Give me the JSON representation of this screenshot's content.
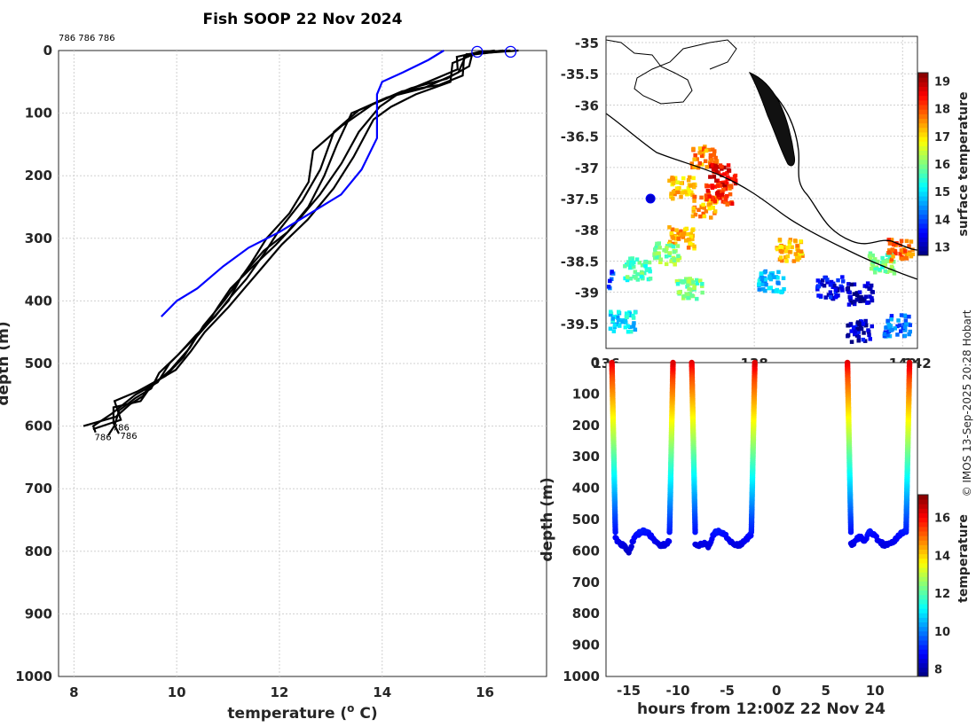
{
  "credit": "© IMOS 13-Sep-2025 20:28 Hobart",
  "chart_data": [
    {
      "type": "line",
      "title": "Fish SOOP 22 Nov 2024",
      "xlabel": "temperature (",
      "xlabel_sup": "o",
      "xlabel_tail": " C)",
      "ylabel": "depth (m)",
      "xlim": [
        7.7,
        17.2
      ],
      "ylim": [
        1000,
        0
      ],
      "xticks": [
        8,
        10,
        12,
        14,
        16
      ],
      "yticks": [
        0,
        100,
        200,
        300,
        400,
        500,
        600,
        700,
        800,
        900,
        1000
      ],
      "top_annotation": "786 786 786",
      "bottom_annotations": [
        {
          "text": "786",
          "x": 8.4,
          "y": 618
        },
        {
          "text": "786",
          "x": 8.9,
          "y": 616
        },
        {
          "text": "786",
          "x": 8.75,
          "y": 603
        }
      ],
      "series": [
        {
          "name": "profiles",
          "color": "#000000",
          "profiles": [
            [
              [
                16.5,
                0
              ],
              [
                15.9,
                2
              ],
              [
                15.5,
                10
              ],
              [
                15.5,
                30
              ],
              [
                14.9,
                50
              ],
              [
                14.3,
                70
              ],
              [
                14.0,
                90
              ],
              [
                13.5,
                130
              ],
              [
                13.2,
                180
              ],
              [
                12.8,
                230
              ],
              [
                12.3,
                280
              ],
              [
                11.9,
                310
              ],
              [
                11.4,
                350
              ],
              [
                11.1,
                380
              ],
              [
                10.8,
                410
              ],
              [
                10.6,
                440
              ],
              [
                10.2,
                470
              ],
              [
                9.9,
                500
              ],
              [
                9.6,
                530
              ],
              [
                9.2,
                550
              ],
              [
                8.9,
                580
              ],
              [
                8.6,
                600
              ],
              [
                8.2,
                610
              ]
            ],
            [
              [
                16.3,
                0
              ],
              [
                15.8,
                5
              ],
              [
                15.7,
                25
              ],
              [
                15.2,
                45
              ],
              [
                14.6,
                60
              ],
              [
                14.0,
                80
              ],
              [
                13.4,
                100
              ],
              [
                13.1,
                150
              ],
              [
                12.9,
                200
              ],
              [
                12.6,
                250
              ],
              [
                12.1,
                290
              ],
              [
                11.7,
                320
              ],
              [
                11.3,
                360
              ],
              [
                11.0,
                400
              ],
              [
                10.7,
                430
              ],
              [
                10.4,
                460
              ],
              [
                10.1,
                490
              ],
              [
                9.8,
                520
              ],
              [
                9.3,
                545
              ],
              [
                9.0,
                560
              ],
              [
                8.7,
                590
              ],
              [
                8.5,
                605
              ]
            ],
            [
              [
                16.4,
                0
              ],
              [
                15.6,
                8
              ],
              [
                15.6,
                40
              ],
              [
                15.1,
                55
              ],
              [
                14.4,
                65
              ],
              [
                13.8,
                85
              ],
              [
                13.2,
                120
              ],
              [
                12.7,
                160
              ],
              [
                12.6,
                210
              ],
              [
                12.2,
                260
              ],
              [
                11.8,
                300
              ],
              [
                11.5,
                340
              ],
              [
                11.2,
                370
              ],
              [
                10.9,
                400
              ],
              [
                10.5,
                440
              ],
              [
                10.2,
                475
              ],
              [
                9.9,
                510
              ],
              [
                9.5,
                540
              ],
              [
                9.3,
                560
              ],
              [
                8.8,
                570
              ],
              [
                8.6,
                595
              ],
              [
                8.9,
                612
              ]
            ],
            [
              [
                16.2,
                0
              ],
              [
                15.9,
                3
              ],
              [
                15.4,
                20
              ],
              [
                15.3,
                50
              ],
              [
                14.7,
                70
              ],
              [
                14.2,
                90
              ],
              [
                13.8,
                110
              ],
              [
                13.4,
                170
              ],
              [
                13.0,
                220
              ],
              [
                12.5,
                270
              ],
              [
                12.0,
                310
              ],
              [
                11.6,
                350
              ],
              [
                11.3,
                380
              ],
              [
                11.0,
                410
              ],
              [
                10.6,
                450
              ],
              [
                10.3,
                480
              ],
              [
                10.0,
                510
              ],
              [
                9.6,
                535
              ],
              [
                9.4,
                552
              ],
              [
                9.0,
                565
              ],
              [
                8.7,
                585
              ],
              [
                8.3,
                600
              ]
            ],
            [
              [
                16.6,
                0
              ],
              [
                15.7,
                6
              ],
              [
                15.5,
                35
              ],
              [
                14.8,
                60
              ],
              [
                14.1,
                75
              ],
              [
                13.6,
                95
              ],
              [
                13.0,
                130
              ],
              [
                12.8,
                190
              ],
              [
                12.4,
                240
              ],
              [
                12.0,
                285
              ],
              [
                11.7,
                325
              ],
              [
                11.4,
                365
              ],
              [
                11.0,
                395
              ],
              [
                10.7,
                425
              ],
              [
                10.4,
                455
              ],
              [
                10.1,
                485
              ],
              [
                9.7,
                515
              ],
              [
                9.4,
                540
              ],
              [
                9.1,
                555
              ],
              [
                8.8,
                575
              ],
              [
                8.6,
                600
              ],
              [
                8.8,
                615
              ]
            ]
          ]
        },
        {
          "name": "climatology",
          "color": "#0000ff",
          "points": [
            [
              15.2,
              0
            ],
            [
              14.9,
              15
            ],
            [
              14.4,
              35
            ],
            [
              14.0,
              50
            ],
            [
              13.9,
              70
            ],
            [
              13.9,
              100
            ],
            [
              13.9,
              140
            ],
            [
              13.6,
              190
            ],
            [
              13.2,
              230
            ],
            [
              12.6,
              260
            ],
            [
              12.0,
              290
            ],
            [
              11.4,
              315
            ],
            [
              10.9,
              345
            ],
            [
              10.4,
              380
            ],
            [
              10.0,
              400
            ],
            [
              9.7,
              425
            ]
          ]
        }
      ],
      "markers": [
        {
          "x": 15.85,
          "y": 2,
          "color": "#0000ff"
        },
        {
          "x": 16.5,
          "y": 2,
          "color": "#0000ff"
        }
      ]
    },
    {
      "type": "heatmap",
      "title": "",
      "xlim": [
        136,
        140.2
      ],
      "ylim": [
        -39.9,
        -34.9
      ],
      "xticks": [
        136,
        138,
        140,
        142
      ],
      "xtick_labels": [
        "136",
        "138",
        "140",
        "142"
      ],
      "yticks": [
        -35,
        -35.5,
        -36,
        -36.5,
        -37,
        -37.5,
        -38,
        -38.5,
        -39,
        -39.5
      ],
      "ytick_labels": [
        "-35",
        "-35.5",
        "-36",
        "-36.5",
        "-37",
        "-37.5",
        "-38",
        "-38.5",
        "-39",
        "-39.5"
      ],
      "colorbar_label": "surface temperature",
      "colorbar_range": [
        12.7,
        19.3
      ],
      "colorbar_ticks": [
        13,
        14,
        15,
        16,
        17,
        18,
        19
      ],
      "ship_position": {
        "lon": 136.6,
        "lat": -37.5
      },
      "sst_patches": [
        {
          "lon": 137.3,
          "lat": -36.8,
          "val": 17.6
        },
        {
          "lon": 137.55,
          "lat": -37.1,
          "val": 18.6
        },
        {
          "lon": 137.0,
          "lat": -37.3,
          "val": 17.2
        },
        {
          "lon": 137.3,
          "lat": -37.6,
          "val": 17.4
        },
        {
          "lon": 137.5,
          "lat": -37.4,
          "val": 18.2
        },
        {
          "lon": 137.0,
          "lat": -38.1,
          "val": 17.4
        },
        {
          "lon": 136.8,
          "lat": -38.35,
          "val": 16.0
        },
        {
          "lon": 136.4,
          "lat": -38.6,
          "val": 15.6
        },
        {
          "lon": 137.1,
          "lat": -38.9,
          "val": 15.9
        },
        {
          "lon": 135.9,
          "lat": -38.8,
          "val": 14.0
        },
        {
          "lon": 136.2,
          "lat": -39.45,
          "val": 15.0
        },
        {
          "lon": 138.2,
          "lat": -38.8,
          "val": 14.8
        },
        {
          "lon": 138.45,
          "lat": -38.3,
          "val": 17.2
        },
        {
          "lon": 139.0,
          "lat": -38.9,
          "val": 13.4
        },
        {
          "lon": 139.4,
          "lat": -39.0,
          "val": 13.0
        },
        {
          "lon": 139.7,
          "lat": -38.5,
          "val": 15.8
        },
        {
          "lon": 139.9,
          "lat": -39.5,
          "val": 14.2
        },
        {
          "lon": 139.4,
          "lat": -39.6,
          "val": 13.2
        },
        {
          "lon": 139.95,
          "lat": -38.3,
          "val": 17.8
        }
      ]
    },
    {
      "type": "scatter",
      "title": "",
      "xlabel": "hours from 12:00Z 22 Nov 24",
      "ylabel": "depth (m)",
      "xlim": [
        -17.3,
        14.3
      ],
      "ylim": [
        1000,
        0
      ],
      "xticks": [
        -15,
        -10,
        -5,
        0,
        5,
        10
      ],
      "yticks": [
        0,
        100,
        200,
        300,
        400,
        500,
        600,
        700,
        800,
        900,
        1000
      ],
      "colorbar_label": "temperature",
      "colorbar_range": [
        7.6,
        17.2
      ],
      "colorbar_ticks": [
        8,
        10,
        12,
        14,
        16
      ],
      "casts": [
        {
          "down": -16.7,
          "up": -10.5
        },
        {
          "down": -8.6,
          "up": -2.2
        },
        {
          "down": 7.2,
          "up": 13.5
        }
      ]
    }
  ]
}
